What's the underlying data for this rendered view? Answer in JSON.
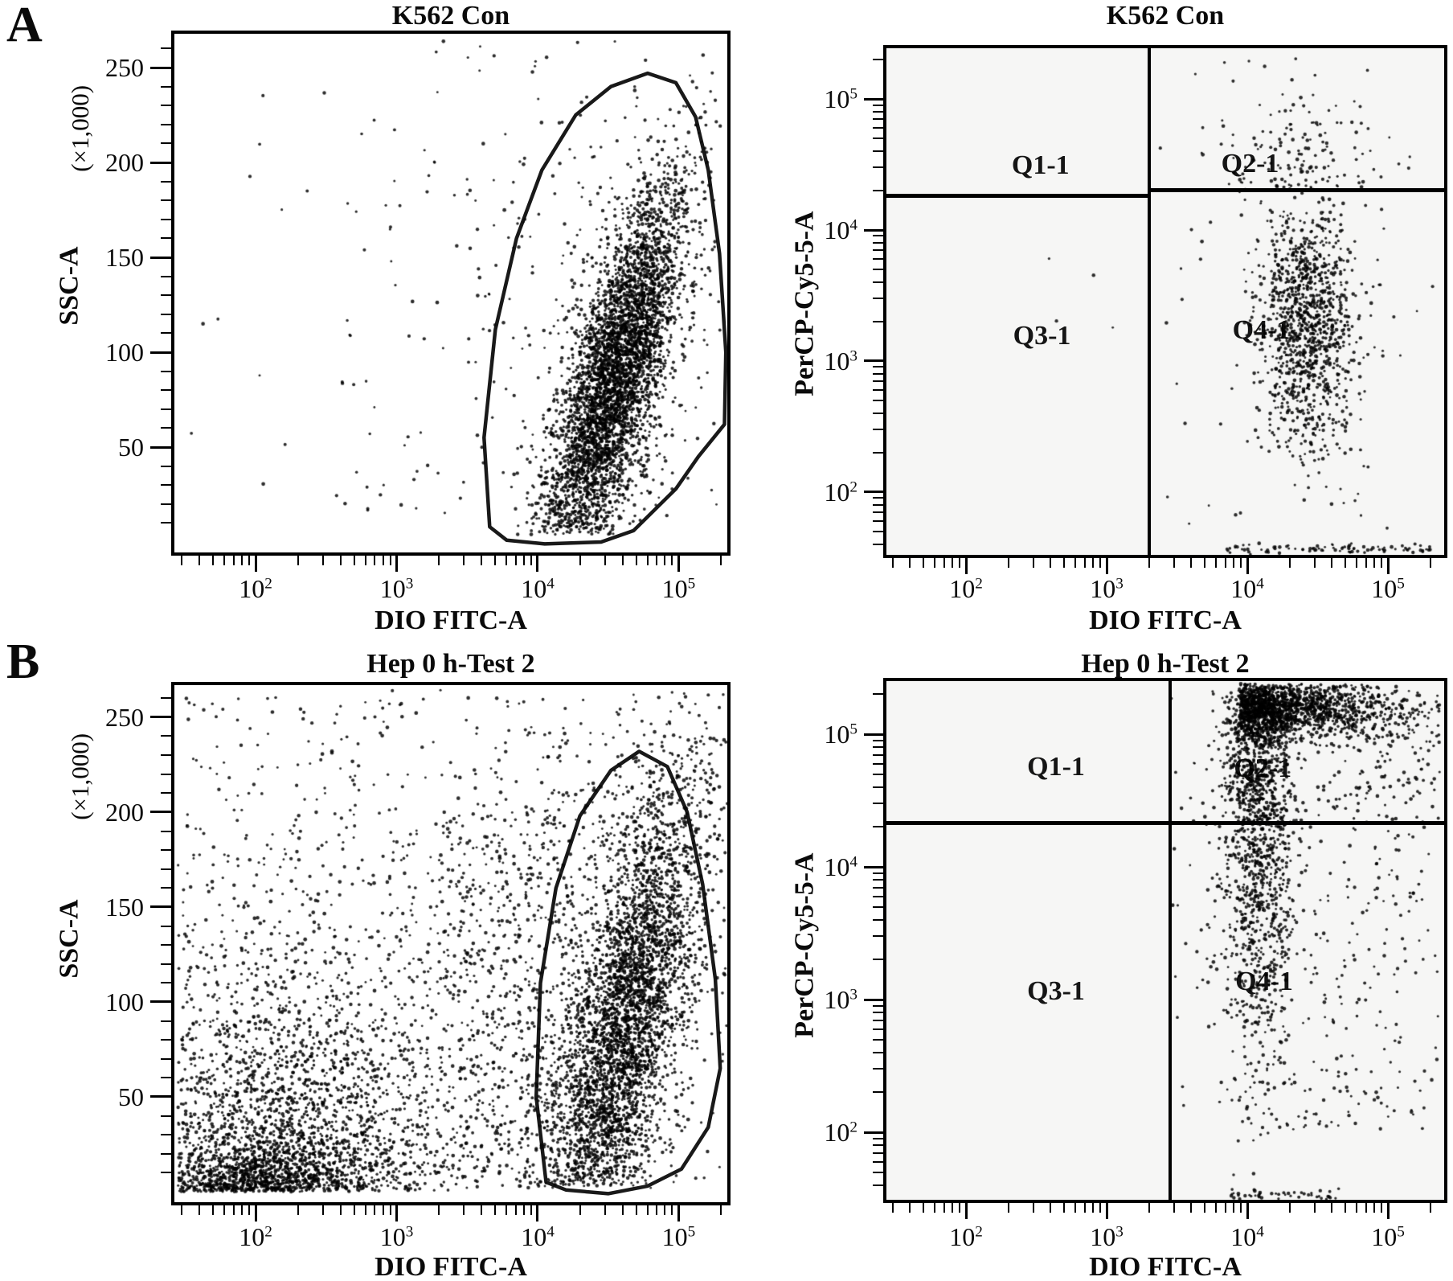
{
  "figure": {
    "panels": [
      {
        "label": "A"
      },
      {
        "label": "B"
      }
    ]
  },
  "chart_data": [
    {
      "id": "panel-a-ssc",
      "type": "scatter",
      "panel": "A",
      "title": "K562 Con",
      "xlabel": "DIO FITC-A",
      "ylabel": "SSC-A",
      "ylabel_unit": "(×1,000)",
      "x_axis": {
        "scale": "log",
        "min": 1.424,
        "max": 5.345,
        "decade_exponents": [
          2,
          3,
          4,
          5
        ]
      },
      "y_axis": {
        "scale": "linear",
        "min": -5.5,
        "max": 267.8,
        "major_ticks": [
          50,
          100,
          150,
          200,
          250
        ],
        "minor_step": 10
      },
      "gate": [
        [
          3.66,
          8
        ],
        [
          3.62,
          55
        ],
        [
          3.7,
          112
        ],
        [
          3.85,
          160
        ],
        [
          4.03,
          196
        ],
        [
          4.27,
          225
        ],
        [
          4.52,
          240
        ],
        [
          4.78,
          247
        ],
        [
          4.98,
          242
        ],
        [
          5.12,
          224
        ],
        [
          5.21,
          196
        ],
        [
          5.29,
          152
        ],
        [
          5.335,
          100
        ],
        [
          5.325,
          62
        ],
        [
          5.14,
          45
        ],
        [
          4.98,
          28
        ],
        [
          4.68,
          6
        ],
        [
          4.45,
          0
        ],
        [
          4.05,
          -1
        ],
        [
          3.78,
          1
        ]
      ],
      "populations": [
        {
          "count": 4200,
          "x": {
            "n": [
              4.56,
              0.23
            ]
          },
          "y": {
            "n": [
              88,
              34
            ]
          },
          "corr": 36,
          "clip_x": [
            3.75,
            5.3
          ],
          "clip_y": [
            4,
            258
          ]
        },
        {
          "count": 330,
          "x": {
            "n": [
              4.5,
              0.5
            ]
          },
          "y": {
            "n": [
              110,
              72
            ]
          },
          "clip_x": [
            2.7,
            5.32
          ],
          "clip_y": [
            4,
            260
          ]
        },
        {
          "count": 70,
          "x": {
            "u": [
              2.55,
              3.85
            ]
          },
          "y": {
            "u": [
              15,
              240
            ]
          }
        },
        {
          "count": 12,
          "x": {
            "u": [
              1.5,
              2.5
            ]
          },
          "y": {
            "u": [
              30,
              260
            ]
          }
        },
        {
          "count": 10,
          "x": {
            "u": [
              3.2,
              4.6
            ]
          },
          "y": {
            "u": [
              248,
              264
            ]
          }
        }
      ]
    },
    {
      "id": "panel-a-quad",
      "type": "scatter",
      "panel": "A",
      "title": "K562 Con",
      "xlabel": "DIO FITC-A",
      "ylabel": "PerCP-Cy5-5-A",
      "x_axis": {
        "scale": "log",
        "min": 1.434,
        "max": 5.4,
        "decade_exponents": [
          2,
          3,
          4,
          5
        ]
      },
      "y_axis": {
        "scale": "log",
        "min": 1.521,
        "max": 5.387,
        "decade_exponents": [
          2,
          3,
          4,
          5
        ]
      },
      "quadrants": {
        "vline_x": 3.3,
        "hline_y_left": 4.262,
        "hline_y_right": 4.305,
        "labels": [
          {
            "text": "Q1-1",
            "x": 2.53,
            "y": 4.48
          },
          {
            "text": "Q2-1",
            "x": 4.02,
            "y": 4.49
          },
          {
            "text": "Q3-1",
            "x": 2.54,
            "y": 3.18
          },
          {
            "text": "Q4-1",
            "x": 4.1,
            "y": 3.22
          }
        ]
      },
      "populations": [
        {
          "count": 1150,
          "x": {
            "n": [
              4.43,
              0.17
            ]
          },
          "y": {
            "n": [
              3.28,
              0.5
            ]
          },
          "clip_x": [
            3.55,
            5.25
          ],
          "clip_y": [
            1.62,
            4.26
          ]
        },
        {
          "count": 140,
          "x": {
            "n": [
              4.4,
              0.3
            ]
          },
          "y": {
            "hn": [
              4.3,
              0.42
            ]
          },
          "clip_x": [
            3.4,
            5.3
          ],
          "clip_y": [
            4.3,
            5.33
          ]
        },
        {
          "count": 90,
          "x": {
            "u": [
              3.85,
              5.35
            ]
          },
          "y": {
            "n": [
              1.565,
              0.02
            ]
          }
        },
        {
          "count": 55,
          "x": {
            "u": [
              3.35,
              5.35
            ]
          },
          "y": {
            "u": [
              1.7,
              5.3
            ]
          }
        },
        {
          "count": 4,
          "x": {
            "u": [
              2.5,
              3.15
            ]
          },
          "y": {
            "u": [
              3.2,
              3.8
            ]
          }
        }
      ]
    },
    {
      "id": "panel-b-ssc",
      "type": "scatter",
      "panel": "B",
      "title": "Hep 0 h-Test 2",
      "xlabel": "DIO FITC-A",
      "ylabel": "SSC-A",
      "ylabel_unit": "(×1,000)",
      "x_axis": {
        "scale": "log",
        "min": 1.424,
        "max": 5.345,
        "decade_exponents": [
          2,
          3,
          4,
          5
        ]
      },
      "y_axis": {
        "scale": "linear",
        "min": -5.5,
        "max": 266.9,
        "major_ticks": [
          50,
          100,
          150,
          200,
          250
        ],
        "minor_step": 10
      },
      "gate": [
        [
          4.06,
          5
        ],
        [
          3.99,
          50
        ],
        [
          4.02,
          110
        ],
        [
          4.13,
          160
        ],
        [
          4.3,
          198
        ],
        [
          4.52,
          222
        ],
        [
          4.72,
          232
        ],
        [
          4.92,
          224
        ],
        [
          5.06,
          200
        ],
        [
          5.17,
          162
        ],
        [
          5.26,
          112
        ],
        [
          5.295,
          65
        ],
        [
          5.21,
          34
        ],
        [
          5.02,
          12
        ],
        [
          4.78,
          3
        ],
        [
          4.5,
          -1
        ],
        [
          4.2,
          1
        ]
      ],
      "populations": [
        {
          "count": 3400,
          "x": {
            "n": [
              4.64,
              0.26
            ]
          },
          "y": {
            "n": [
              90,
              46
            ]
          },
          "corr": 40,
          "clip_x": [
            3.85,
            5.33
          ],
          "clip_y": [
            3,
            262
          ]
        },
        {
          "count": 600,
          "x": {
            "n": [
              4.55,
              0.5
            ]
          },
          "y": {
            "n": [
              112,
              80
            ]
          },
          "clip_x": [
            3.2,
            5.34
          ],
          "clip_y": [
            2,
            264
          ]
        },
        {
          "count": 1700,
          "x": {
            "n": [
              2.2,
              0.6
            ]
          },
          "y": {
            "hn": [
              0,
              55
            ]
          },
          "clip_x": [
            1.45,
            4.0
          ],
          "clip_y": [
            0,
            195
          ]
        },
        {
          "count": 800,
          "x": {
            "u": [
              1.45,
              4.3
            ]
          },
          "y": {
            "u": [
              1,
              185
            ]
          }
        },
        {
          "count": 700,
          "x": {
            "n": [
              1.95,
              0.45
            ]
          },
          "y": {
            "hn": [
              0,
              13
            ]
          },
          "clip_x": [
            1.45,
            3.3
          ],
          "clip_y": [
            0,
            45
          ]
        },
        {
          "count": 260,
          "x": {
            "u": [
              1.5,
              5.35
            ]
          },
          "y": {
            "u": [
              185,
              265
            ]
          }
        },
        {
          "count": 300,
          "x": {
            "u": [
              3.3,
              4.3
            ]
          },
          "y": {
            "u": [
              2,
              200
            ]
          }
        }
      ]
    },
    {
      "id": "panel-b-quad",
      "type": "scatter",
      "panel": "B",
      "title": "Hep 0 h-Test 2",
      "xlabel": "DIO FITC-A",
      "ylabel": "PerCP-Cy5-5-A",
      "x_axis": {
        "scale": "log",
        "min": 1.434,
        "max": 5.4,
        "decade_exponents": [
          2,
          3,
          4,
          5
        ]
      },
      "y_axis": {
        "scale": "log",
        "min": 1.491,
        "max": 5.4,
        "decade_exponents": [
          2,
          3,
          4,
          5
        ]
      },
      "quadrants": {
        "vline_x": 3.45,
        "hline_y_left": 4.33,
        "hline_y_right": 4.33,
        "labels": [
          {
            "text": "Q1-1",
            "x": 2.64,
            "y": 4.74
          },
          {
            "text": "Q2-1",
            "x": 4.11,
            "y": 4.73
          },
          {
            "text": "Q3-1",
            "x": 2.64,
            "y": 3.05
          },
          {
            "text": "Q4-1",
            "x": 4.12,
            "y": 3.12
          }
        ]
      },
      "populations": [
        {
          "count": 1500,
          "x": {
            "n": [
              4.08,
              0.13
            ]
          },
          "y": {
            "hnd": [
              5.35,
              1.35
            ]
          },
          "clip_x": [
            3.7,
            4.55
          ],
          "clip_y": [
            1.65,
            5.36
          ]
        },
        {
          "count": 1400,
          "x": {
            "hn": [
              3.95,
              0.5
            ]
          },
          "y": {
            "n": [
              5.2,
              0.11
            ]
          },
          "clip_x": [
            3.9,
            5.37
          ],
          "clip_y": [
            4.55,
            5.38
          ]
        },
        {
          "count": 220,
          "x": {
            "u": [
              4.15,
              5.36
            ]
          },
          "y": {
            "u": [
              2.0,
              4.3
            ]
          }
        },
        {
          "count": 180,
          "x": {
            "u": [
              4.5,
              5.37
            ]
          },
          "y": {
            "u": [
              4.33,
              5.3
            ]
          }
        },
        {
          "count": 45,
          "x": {
            "u": [
              3.45,
              3.95
            ]
          },
          "y": {
            "u": [
              2.2,
              5.3
            ]
          }
        },
        {
          "count": 45,
          "x": {
            "u": [
              3.85,
              4.65
            ]
          },
          "y": {
            "n": [
              1.53,
              0.02
            ]
          }
        }
      ]
    }
  ]
}
